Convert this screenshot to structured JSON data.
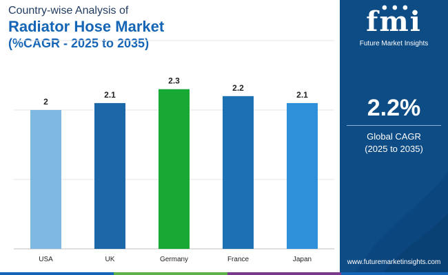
{
  "title": {
    "line1": "Country-wise Analysis of",
    "line2": "Radiator Hose Market",
    "line3": "(%CAGR - 2025 to 2035)"
  },
  "chart_data": {
    "type": "bar",
    "categories": [
      "USA",
      "UK",
      "Germany",
      "France",
      "Japan"
    ],
    "values": [
      2,
      2.1,
      2.3,
      2.2,
      2.1
    ],
    "data_labels": [
      "2",
      "2.1",
      "2.3",
      "2.2",
      "2.1"
    ],
    "bar_colors": [
      "#7fb9e3",
      "#1c67a8",
      "#17a934",
      "#1c71b3",
      "#2e90d8"
    ],
    "ylim": [
      0,
      3
    ],
    "grid": true,
    "xlabel": "",
    "ylabel": ""
  },
  "sidebar": {
    "logo_text": "fmi",
    "brand_name": "Future Market Insights",
    "cagr_value": "2.2%",
    "cagr_label_line1": "Global CAGR",
    "cagr_label_line2": "(2025 to 2035)",
    "website": "www.futuremarketinsights.com"
  },
  "colors": {
    "sidebar_bg": "#0e4c86",
    "title_dark": "#1f3a5f",
    "title_accent": "#1565b6",
    "strip": [
      "#1565b6",
      "#5fb14a",
      "#7a3a8c",
      "#1565b6"
    ]
  }
}
